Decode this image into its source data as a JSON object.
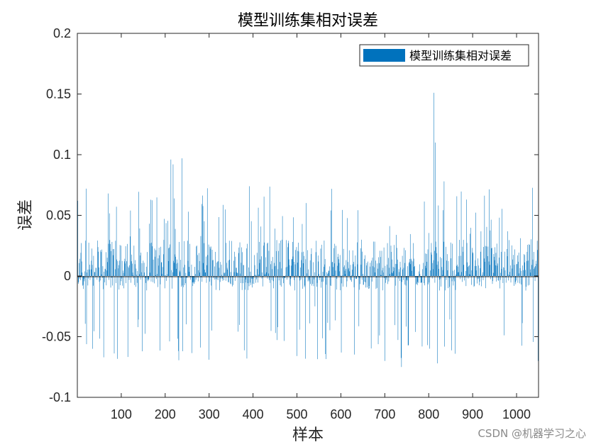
{
  "chart_data": {
    "type": "bar",
    "title": "模型训练集相对误差",
    "xlabel": "样本",
    "ylabel": "误差",
    "xlim": [
      0,
      1050
    ],
    "ylim": [
      -0.1,
      0.2
    ],
    "xticks": [
      100,
      200,
      300,
      400,
      500,
      600,
      700,
      800,
      900,
      1000
    ],
    "xtick_labels": [
      "100",
      "200",
      "300",
      "400",
      "500",
      "600",
      "700",
      "800",
      "900",
      "1000"
    ],
    "yticks": [
      -0.1,
      -0.05,
      0,
      0.05,
      0.1,
      0.15,
      0.2
    ],
    "ytick_labels": [
      "-0.1",
      "-0.05",
      "0",
      "0.05",
      "0.1",
      "0.15",
      "0.2"
    ],
    "grid": false,
    "legend_position": "top-right",
    "series": [
      {
        "name": "模型训练集相对误差",
        "color": "#0072BD",
        "n_points": 1050,
        "notable_values": [
          {
            "x": 1,
            "y": 0.062
          },
          {
            "x": 20,
            "y": 0.072
          },
          {
            "x": 35,
            "y": -0.06
          },
          {
            "x": 60,
            "y": -0.067
          },
          {
            "x": 70,
            "y": 0.068
          },
          {
            "x": 213,
            "y": 0.096
          },
          {
            "x": 218,
            "y": 0.092
          },
          {
            "x": 238,
            "y": 0.097
          },
          {
            "x": 240,
            "y": -0.062
          },
          {
            "x": 300,
            "y": -0.069
          },
          {
            "x": 386,
            "y": -0.068
          },
          {
            "x": 392,
            "y": 0.074
          },
          {
            "x": 541,
            "y": -0.025
          },
          {
            "x": 700,
            "y": -0.07
          },
          {
            "x": 738,
            "y": -0.075
          },
          {
            "x": 812,
            "y": 0.151
          },
          {
            "x": 815,
            "y": 0.11
          },
          {
            "x": 820,
            "y": -0.072
          },
          {
            "x": 835,
            "y": 0.078
          },
          {
            "x": 1049,
            "y": -0.07
          }
        ]
      }
    ]
  },
  "watermark": "CSDN @机器学习之心"
}
